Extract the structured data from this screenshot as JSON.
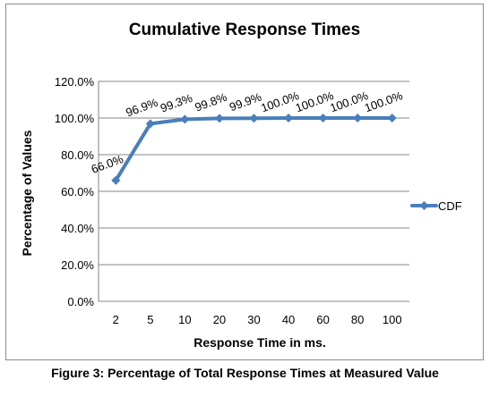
{
  "chart_data": {
    "type": "line",
    "title": "Cumulative Response Times",
    "xlabel": "Response Time in ms.",
    "ylabel": "Percentage of Values",
    "categories": [
      "2",
      "5",
      "10",
      "20",
      "30",
      "40",
      "60",
      "80",
      "100"
    ],
    "series": [
      {
        "name": "CDF",
        "values": [
          66.0,
          96.9,
          99.3,
          99.8,
          99.9,
          100.0,
          100.0,
          100.0,
          100.0
        ],
        "data_labels": [
          "66.0%",
          "96.9%",
          "99.3%",
          "99.8%",
          "99.9%",
          "100.0%",
          "100.0%",
          "100.0%",
          "100.0%"
        ],
        "color": "#4a7ebb"
      }
    ],
    "yticks": [
      "0.0%",
      "20.0%",
      "40.0%",
      "60.0%",
      "80.0%",
      "100.0%",
      "120.0%"
    ],
    "ylim": [
      0,
      120
    ],
    "grid": true,
    "legend": "right"
  },
  "caption": "Figure 3: Percentage of Total Response Times at Measured Value"
}
